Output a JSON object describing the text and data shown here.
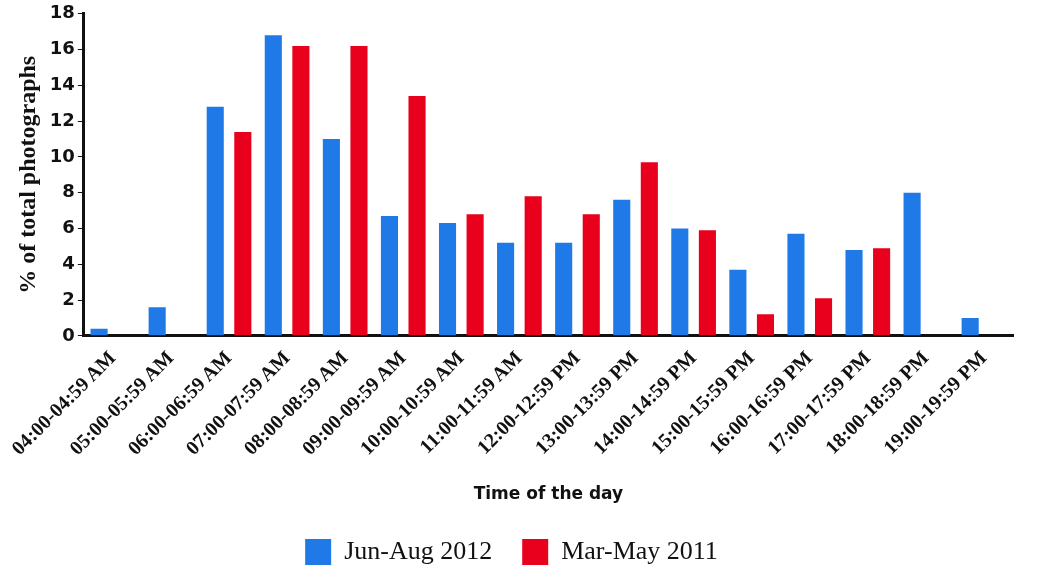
{
  "chart_data": {
    "type": "bar",
    "xlabel": "Time of the day",
    "ylabel": "% of total photographs",
    "categories": [
      "04:00-04:59 AM",
      "05:00-05:59 AM",
      "06:00-06:59 AM",
      "07:00-07:59 AM",
      "08:00-08:59 AM",
      "09:00-09:59 AM",
      "10:00-10:59 AM",
      "11:00-11:59 AM",
      "12:00-12:59 PM",
      "13:00-13:59 PM",
      "14:00-14:59 PM",
      "15:00-15:59 PM",
      "16:00-16:59 PM",
      "17:00-17:59 PM",
      "18:00-18:59 PM",
      "19:00-19:59 PM"
    ],
    "series": [
      {
        "name": "Jun-Aug 2012",
        "color": "#1f7ae8",
        "values": [
          0.4,
          1.6,
          12.8,
          16.8,
          11.0,
          6.7,
          6.3,
          5.2,
          5.2,
          7.6,
          6.0,
          3.7,
          5.7,
          4.8,
          8.0,
          1.0
        ]
      },
      {
        "name": "Mar-May 2011",
        "color": "#e8001c",
        "values": [
          0,
          0,
          11.4,
          16.2,
          16.2,
          13.4,
          6.8,
          7.8,
          6.8,
          9.7,
          5.9,
          1.2,
          2.1,
          4.9,
          0,
          0
        ]
      }
    ],
    "ylim": [
      0,
      18
    ],
    "yticks": [
      0,
      2,
      4,
      6,
      8,
      10,
      12,
      14,
      16,
      18
    ],
    "grid": false,
    "legend": "bottom"
  }
}
